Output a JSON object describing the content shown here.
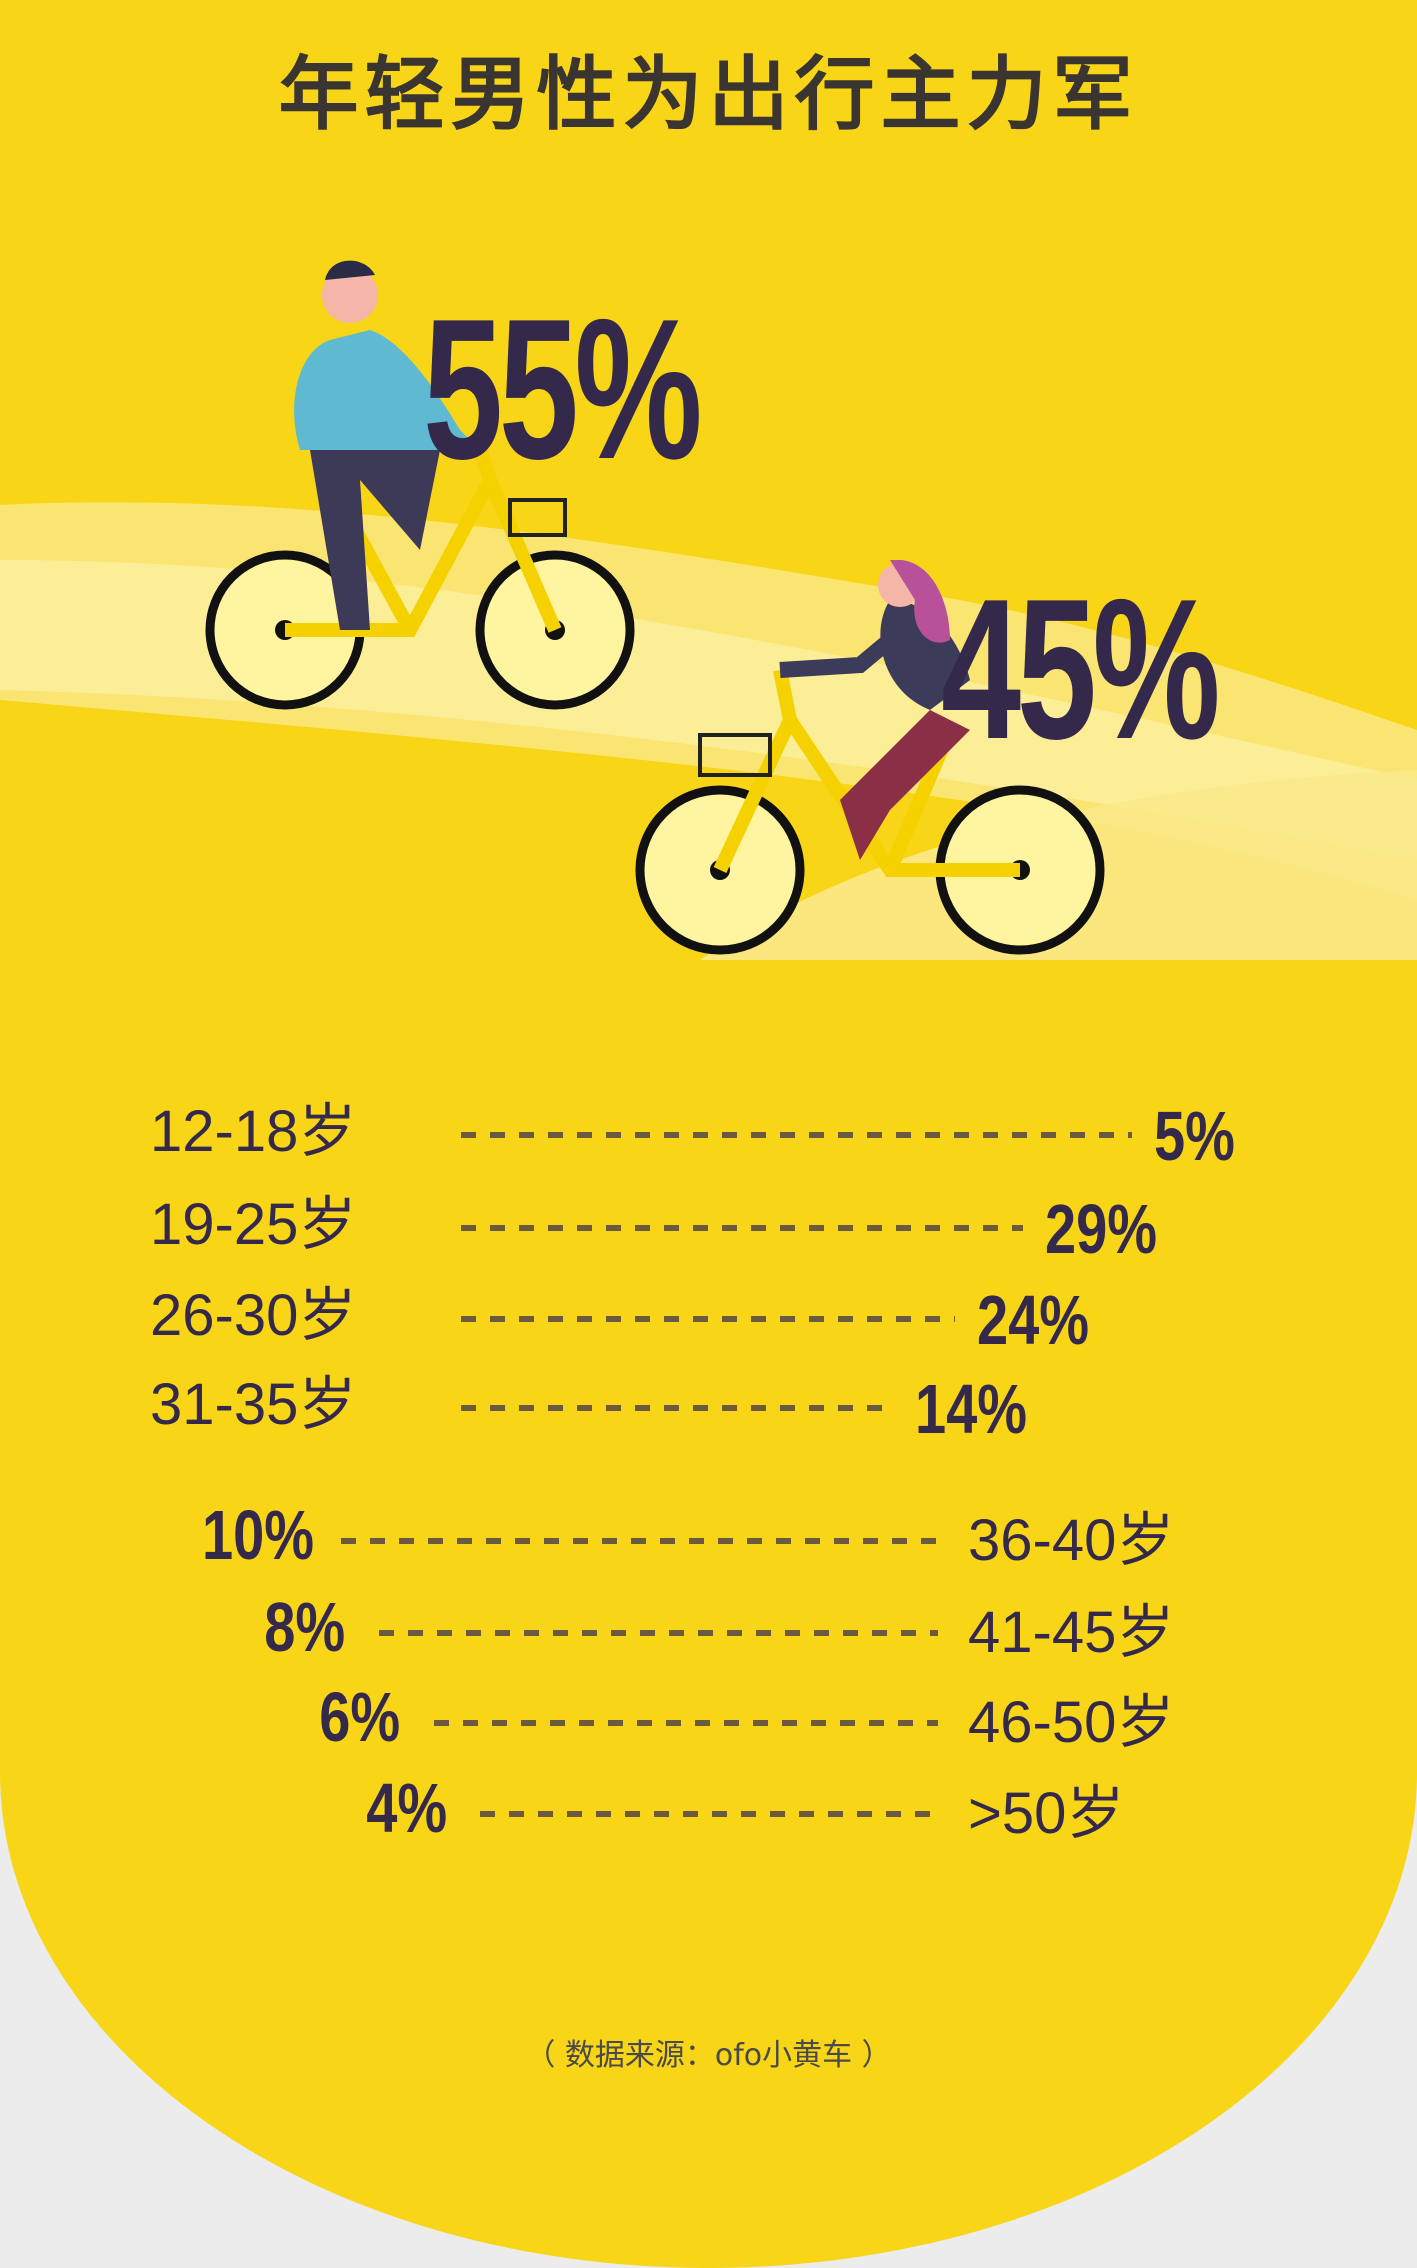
{
  "title": "年轻男性为出行主力军",
  "colors": {
    "background": "#f8d617",
    "text": "#34294b",
    "dash": "#6b5a3f",
    "wave": "#fbe98a"
  },
  "gender": {
    "male": {
      "label": "55%",
      "value": 55,
      "icon": "man-on-bike-illustration"
    },
    "female": {
      "label": "45%",
      "value": 45,
      "icon": "woman-on-bike-illustration"
    }
  },
  "chart_data": {
    "type": "bar",
    "orientation": "horizontal",
    "categories": [
      "12-18岁",
      "19-25岁",
      "26-30岁",
      "31-35岁",
      "36-40岁",
      "41-45岁",
      "46-50岁",
      ">50岁"
    ],
    "values": [
      5,
      29,
      24,
      14,
      10,
      8,
      6,
      4
    ],
    "labels": [
      "5%",
      "29%",
      "24%",
      "14%",
      "10%",
      "8%",
      "6%",
      "4%"
    ],
    "unit": "%"
  },
  "source": "（ 数据来源：ofo小黄车 ）"
}
